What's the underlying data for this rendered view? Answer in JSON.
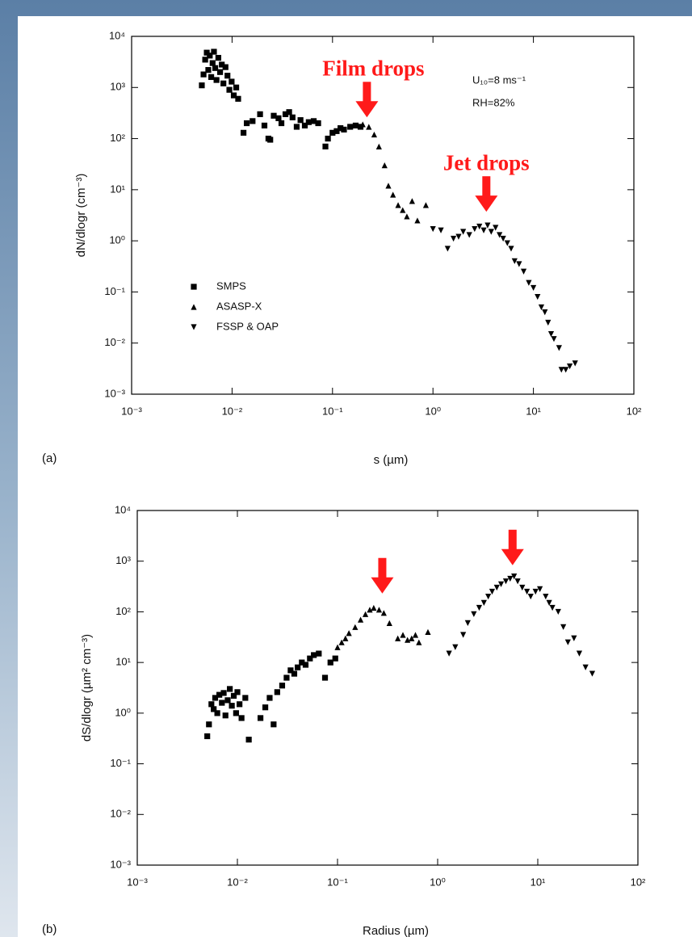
{
  "chart_data": [
    {
      "type": "scatter",
      "panel_label": "(a)",
      "xlabel": "s (µm)",
      "ylabel": "dN/dlogr (cm⁻³)",
      "xscale": "log",
      "yscale": "log",
      "xlim": [
        0.001,
        100
      ],
      "ylim": [
        0.001,
        10000
      ],
      "xticks": [
        {
          "value": 0.001,
          "label": "10⁻³"
        },
        {
          "value": 0.01,
          "label": "10⁻²"
        },
        {
          "value": 0.1,
          "label": "10⁻¹"
        },
        {
          "value": 1,
          "label": "10⁰"
        },
        {
          "value": 10,
          "label": "10¹"
        },
        {
          "value": 100,
          "label": "10²"
        }
      ],
      "yticks": [
        {
          "value": 0.001,
          "label": "10⁻³"
        },
        {
          "value": 0.01,
          "label": "10⁻²"
        },
        {
          "value": 0.1,
          "label": "10⁻¹"
        },
        {
          "value": 1,
          "label": "10⁰"
        },
        {
          "value": 10,
          "label": "10¹"
        },
        {
          "value": 100,
          "label": "10²"
        },
        {
          "value": 1000,
          "label": "10³"
        },
        {
          "value": 10000,
          "label": "10⁴"
        }
      ],
      "notes": [
        "U₁₀=8 ms⁻¹",
        "RH=82%"
      ],
      "annotations": [
        {
          "text": "Film drops",
          "x": 0.22,
          "y": 260
        },
        {
          "text": "Jet drops",
          "x": 3.4,
          "y": 3.7
        }
      ],
      "series": [
        {
          "name": "SMPS",
          "marker": "square",
          "color": "#000000",
          "x": [
            0.005,
            0.0052,
            0.0054,
            0.0056,
            0.0058,
            0.006,
            0.0062,
            0.0064,
            0.0066,
            0.0068,
            0.007,
            0.0073,
            0.0076,
            0.0079,
            0.0082,
            0.0086,
            0.009,
            0.0094,
            0.0099,
            0.0104,
            0.011,
            0.0115,
            0.013,
            0.014,
            0.016,
            0.019,
            0.021,
            0.023,
            0.024,
            0.026,
            0.029,
            0.031,
            0.034,
            0.037,
            0.04,
            0.044,
            0.048,
            0.053,
            0.058,
            0.065,
            0.072,
            0.085,
            0.09,
            0.1,
            0.11,
            0.12,
            0.13,
            0.15,
            0.17,
            0.19
          ],
          "y": [
            1100,
            1800,
            3500,
            4800,
            2200,
            4200,
            1600,
            3000,
            5000,
            2400,
            1400,
            3800,
            2000,
            2800,
            1200,
            2500,
            1700,
            900,
            1300,
            700,
            1000,
            600,
            130,
            200,
            220,
            300,
            180,
            100,
            95,
            280,
            250,
            200,
            300,
            330,
            260,
            170,
            230,
            180,
            210,
            220,
            200,
            70,
            100,
            130,
            140,
            160,
            150,
            170,
            180,
            170
          ]
        },
        {
          "name": "ASASP-X",
          "marker": "triangle-up",
          "color": "#000000",
          "x": [
            0.2,
            0.23,
            0.26,
            0.29,
            0.33,
            0.36,
            0.4,
            0.45,
            0.5,
            0.55,
            0.62,
            0.7,
            0.85
          ],
          "y": [
            190,
            170,
            120,
            70,
            30,
            12,
            8,
            5,
            4,
            3,
            6,
            2.5,
            5
          ]
        },
        {
          "name": "FSSP & OAP",
          "marker": "triangle-down",
          "color": "#000000",
          "x": [
            1.0,
            1.2,
            1.4,
            1.6,
            1.8,
            2.0,
            2.3,
            2.6,
            2.9,
            3.2,
            3.5,
            3.8,
            4.2,
            4.6,
            5.0,
            5.5,
            6.0,
            6.5,
            7.2,
            8.0,
            9.0,
            10,
            11,
            12,
            13,
            14,
            15,
            16,
            18,
            19,
            21,
            23,
            26
          ],
          "y": [
            1.7,
            1.6,
            0.7,
            1.1,
            1.2,
            1.5,
            1.3,
            1.7,
            1.9,
            1.6,
            2.0,
            1.5,
            1.8,
            1.3,
            1.1,
            0.9,
            0.7,
            0.4,
            0.35,
            0.25,
            0.15,
            0.12,
            0.08,
            0.05,
            0.04,
            0.025,
            0.015,
            0.012,
            0.008,
            0.003,
            0.003,
            0.0035,
            0.004
          ]
        }
      ]
    },
    {
      "type": "scatter",
      "panel_label": "(b)",
      "xlabel": "Radius (µm)",
      "ylabel": "dS/dlogr (µm² cm⁻³)",
      "xscale": "log",
      "yscale": "log",
      "xlim": [
        0.001,
        100
      ],
      "ylim": [
        0.001,
        10000
      ],
      "xticks": [
        {
          "value": 0.001,
          "label": "10⁻³"
        },
        {
          "value": 0.01,
          "label": "10⁻²"
        },
        {
          "value": 0.1,
          "label": "10⁻¹"
        },
        {
          "value": 1,
          "label": "10⁰"
        },
        {
          "value": 10,
          "label": "10¹"
        },
        {
          "value": 100,
          "label": "10²"
        }
      ],
      "yticks": [
        {
          "value": 0.001,
          "label": "10⁻³"
        },
        {
          "value": 0.01,
          "label": "10⁻²"
        },
        {
          "value": 0.1,
          "label": "10⁻¹"
        },
        {
          "value": 1,
          "label": "10⁰"
        },
        {
          "value": 10,
          "label": "10¹"
        },
        {
          "value": 100,
          "label": "10²"
        },
        {
          "value": 1000,
          "label": "10³"
        },
        {
          "value": 10000,
          "label": "10⁴"
        }
      ],
      "arrows": [
        {
          "x": 0.28,
          "y": 230
        },
        {
          "x": 5.6,
          "y": 830
        }
      ],
      "series": [
        {
          "marker": "square",
          "color": "#000000",
          "x": [
            0.005,
            0.0052,
            0.0055,
            0.0058,
            0.006,
            0.0063,
            0.0066,
            0.007,
            0.0073,
            0.0076,
            0.008,
            0.0084,
            0.0088,
            0.0092,
            0.0097,
            0.01,
            0.0105,
            0.011,
            0.012,
            0.013,
            0.017,
            0.019,
            0.021,
            0.023,
            0.025,
            0.028,
            0.031,
            0.034,
            0.037,
            0.04,
            0.044,
            0.048,
            0.053,
            0.058,
            0.065,
            0.075,
            0.085,
            0.095
          ],
          "y": [
            0.35,
            0.6,
            1.5,
            1.2,
            2.0,
            1.0,
            2.3,
            1.6,
            2.5,
            0.9,
            1.8,
            3.0,
            1.4,
            2.2,
            1.0,
            2.6,
            1.5,
            0.8,
            2.0,
            0.3,
            0.8,
            1.3,
            2.0,
            0.6,
            2.6,
            3.5,
            5,
            7,
            6,
            8,
            10,
            9,
            12,
            14,
            15,
            5,
            10,
            12
          ]
        },
        {
          "marker": "triangle-up",
          "color": "#000000",
          "x": [
            0.1,
            0.11,
            0.12,
            0.13,
            0.15,
            0.17,
            0.19,
            0.21,
            0.23,
            0.26,
            0.29,
            0.33,
            0.4,
            0.45,
            0.5,
            0.55,
            0.6,
            0.65,
            0.8
          ],
          "y": [
            20,
            25,
            30,
            38,
            50,
            70,
            90,
            110,
            120,
            110,
            95,
            60,
            30,
            35,
            28,
            30,
            35,
            25,
            40
          ]
        },
        {
          "marker": "triangle-down",
          "color": "#000000",
          "x": [
            1.3,
            1.5,
            1.8,
            2.0,
            2.3,
            2.6,
            2.9,
            3.2,
            3.5,
            3.9,
            4.3,
            4.8,
            5.3,
            5.8,
            6.3,
            7.0,
            7.8,
            8.5,
            9.5,
            10.5,
            12,
            13,
            14,
            16,
            18,
            20,
            23,
            26,
            30,
            35
          ],
          "y": [
            15,
            20,
            35,
            60,
            90,
            120,
            150,
            200,
            250,
            300,
            350,
            400,
            450,
            500,
            400,
            300,
            250,
            200,
            250,
            280,
            200,
            150,
            120,
            100,
            50,
            25,
            30,
            15,
            8,
            6
          ]
        }
      ]
    }
  ]
}
